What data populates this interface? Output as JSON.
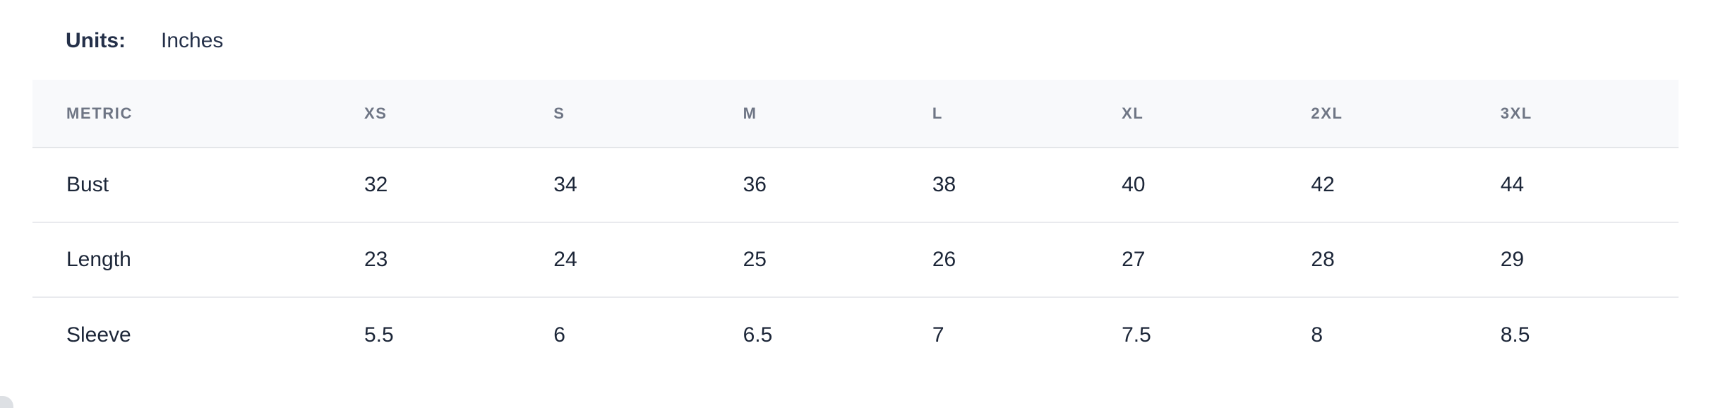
{
  "units": {
    "label": "Units:",
    "value": "Inches"
  },
  "table": {
    "columns": [
      "METRIC",
      "XS",
      "S",
      "M",
      "L",
      "XL",
      "2XL",
      "3XL"
    ],
    "rows": [
      {
        "metric": "Bust",
        "values": [
          "32",
          "34",
          "36",
          "38",
          "40",
          "42",
          "44"
        ]
      },
      {
        "metric": "Length",
        "values": [
          "23",
          "24",
          "25",
          "26",
          "27",
          "28",
          "29"
        ]
      },
      {
        "metric": "Sleeve",
        "values": [
          "5.5",
          "6",
          "6.5",
          "7",
          "7.5",
          "8",
          "8.5"
        ]
      }
    ]
  },
  "colors": {
    "units_text": "#243049",
    "header_text": "#6e7584",
    "header_bg": "#f8f9fb",
    "body_text": "#1c2638",
    "divider": "#e9eaee",
    "divider_strong": "#e4e6e9"
  }
}
